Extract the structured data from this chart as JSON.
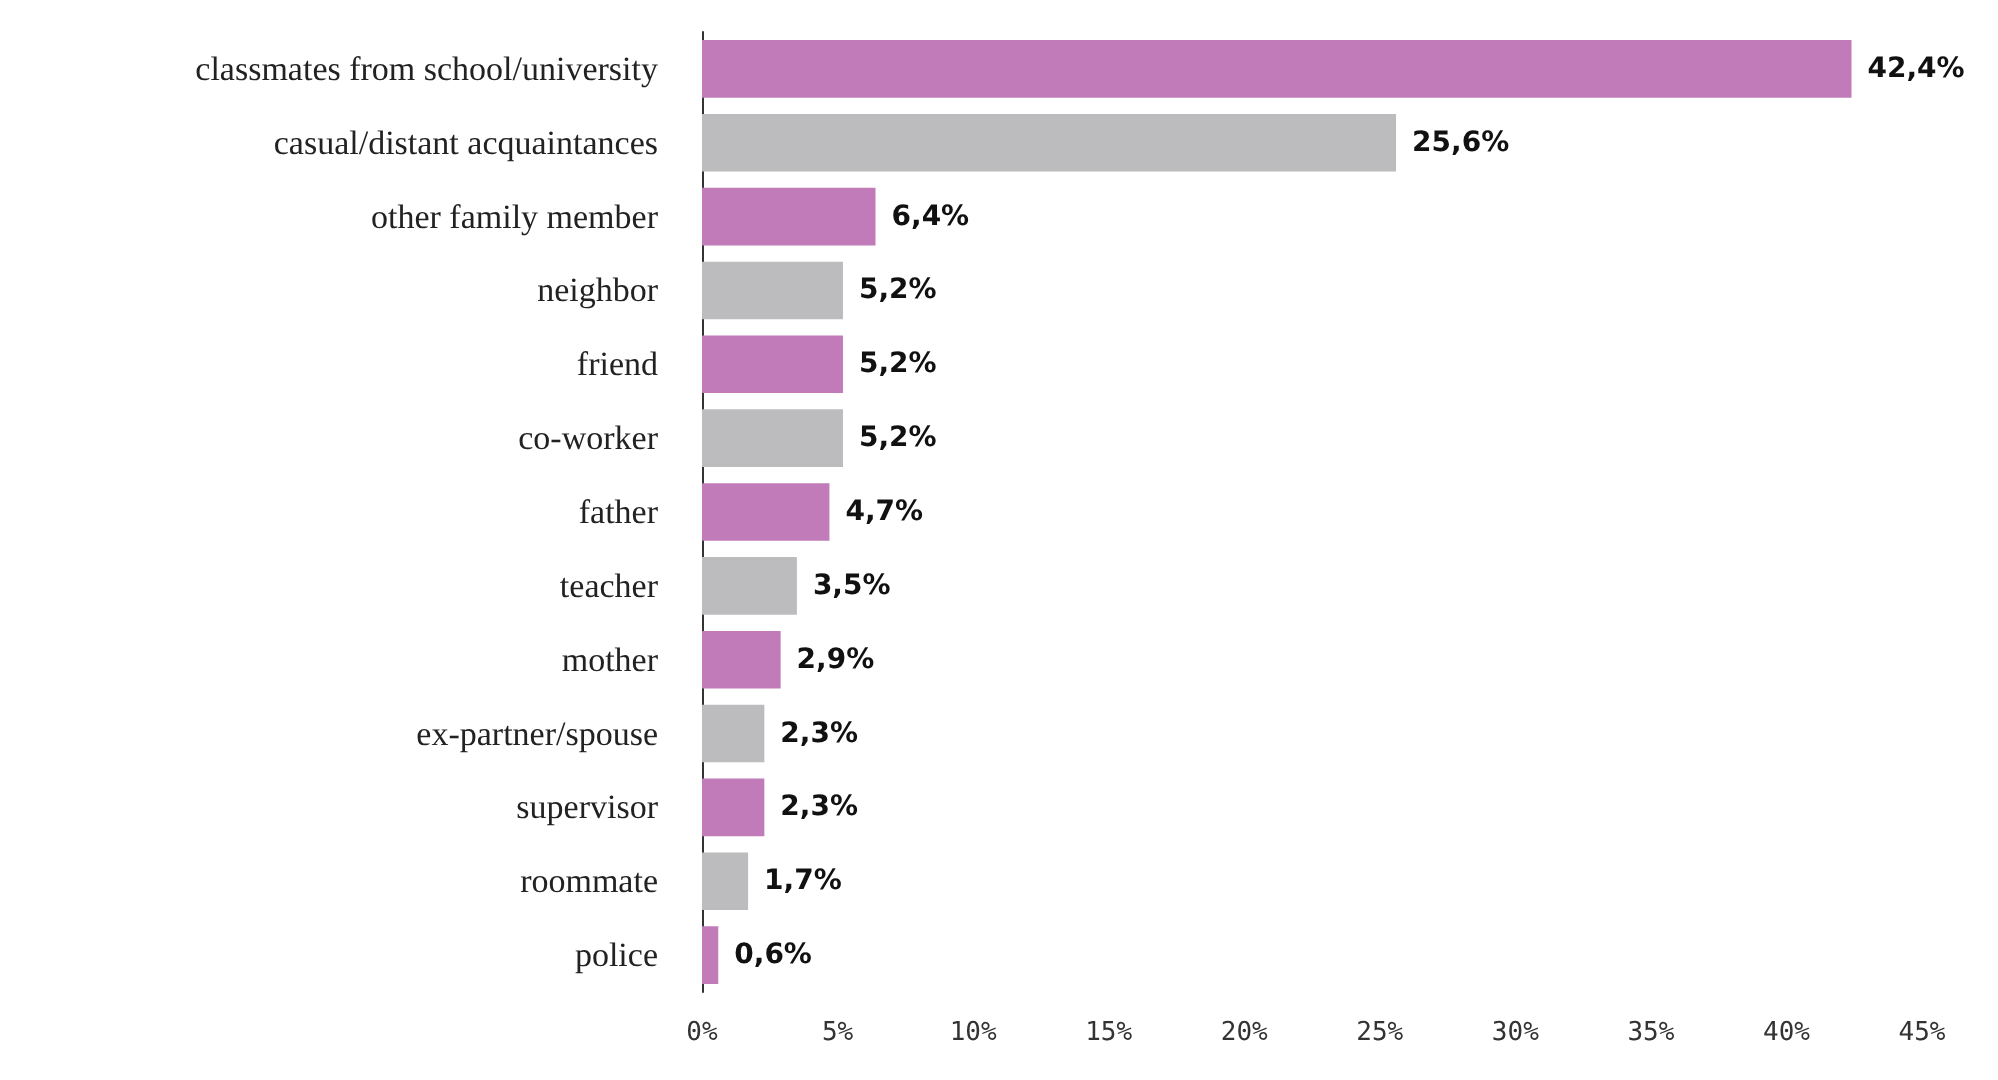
{
  "chart_data": {
    "type": "bar",
    "orientation": "horizontal",
    "categories": [
      "classmates from school/university",
      "casual/distant acquaintances",
      "other family member",
      "neighbor",
      "friend",
      "co-worker",
      "father",
      "teacher",
      "mother",
      "ex-partner/spouse",
      "supervisor",
      "roommate",
      "police"
    ],
    "values": [
      42.4,
      25.6,
      6.4,
      5.2,
      5.2,
      5.2,
      4.7,
      3.5,
      2.9,
      2.3,
      2.3,
      1.7,
      0.6
    ],
    "colors": [
      "#c17bb9",
      "#bcbcbe",
      "#c17bb9",
      "#bcbcbe",
      "#c17bb9",
      "#bcbcbe",
      "#c17bb9",
      "#bcbcbe",
      "#c17bb9",
      "#bcbcbe",
      "#c17bb9",
      "#bcbcbe",
      "#c17bb9"
    ],
    "value_labels": [
      "42,4%",
      "25,6%",
      "6,4%",
      "5,2%",
      "5,2%",
      "5,2%",
      "4,7%",
      "3,5%",
      "2,9%",
      "2,3%",
      "2,3%",
      "1,7%",
      "0,6%"
    ],
    "xlim": [
      0,
      45
    ],
    "xticks": [
      {
        "value": 0,
        "label": "0%"
      },
      {
        "value": 5,
        "label": "5%"
      },
      {
        "value": 10,
        "label": "10%"
      },
      {
        "value": 15,
        "label": "15%"
      },
      {
        "value": 20,
        "label": "20%"
      },
      {
        "value": 25,
        "label": "25%"
      },
      {
        "value": 30,
        "label": "30%"
      },
      {
        "value": 35,
        "label": "35%"
      },
      {
        "value": 40,
        "label": "40%"
      },
      {
        "value": 45,
        "label": "45%"
      }
    ],
    "grid": false
  }
}
